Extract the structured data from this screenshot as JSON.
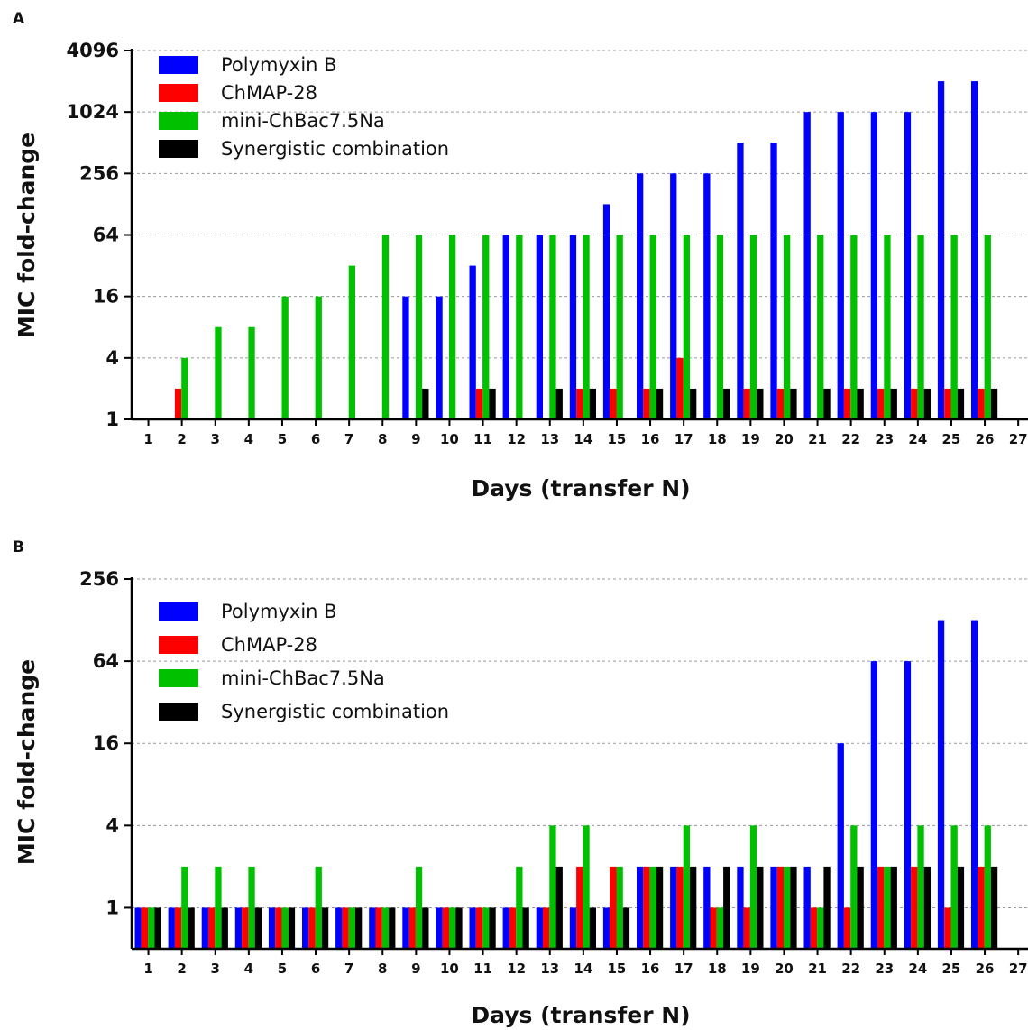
{
  "colors": {
    "Polymyxin B": "#0000ff",
    "ChMAP-28": "#ff0000",
    "mini-ChBac7.5Na": "#00c000",
    "Synergistic combination": "#000000",
    "grid": "#9a9a9a",
    "axis": "#000000"
  },
  "chart_data": [
    {
      "panel": "A",
      "type": "bar",
      "xlabel": "Days (transfer N)",
      "ylabel": "MIC fold-change",
      "yscale": "log2",
      "ylim": [
        1,
        4096
      ],
      "yticks": [
        1,
        4,
        16,
        64,
        256,
        1024,
        4096
      ],
      "grid": true,
      "legend_position": "top-left",
      "categories": [
        "1",
        "2",
        "3",
        "4",
        "5",
        "6",
        "7",
        "8",
        "9",
        "10",
        "11",
        "12",
        "13",
        "14",
        "15",
        "16",
        "17",
        "18",
        "19",
        "20",
        "21",
        "22",
        "23",
        "24",
        "25",
        "26",
        "27"
      ],
      "series": [
        {
          "name": "Polymyxin B",
          "values": [
            1,
            1,
            1,
            1,
            1,
            1,
            1,
            1,
            16,
            16,
            32,
            64,
            64,
            64,
            128,
            256,
            256,
            256,
            512,
            512,
            1024,
            1024,
            1024,
            1024,
            2048,
            2048,
            null
          ]
        },
        {
          "name": "ChMAP-28",
          "values": [
            1,
            2,
            1,
            1,
            1,
            1,
            1,
            1,
            1,
            1,
            2,
            1,
            1,
            2,
            2,
            2,
            4,
            1,
            2,
            2,
            1,
            2,
            2,
            2,
            2,
            2,
            null
          ]
        },
        {
          "name": "mini-ChBac7.5Na",
          "values": [
            1,
            4,
            8,
            8,
            16,
            16,
            32,
            64,
            64,
            64,
            64,
            64,
            64,
            64,
            64,
            64,
            64,
            64,
            64,
            64,
            64,
            64,
            64,
            64,
            64,
            64,
            null
          ]
        },
        {
          "name": "Synergistic combination",
          "values": [
            1,
            1,
            1,
            1,
            1,
            1,
            1,
            1,
            2,
            1,
            2,
            1,
            2,
            2,
            1,
            2,
            2,
            2,
            2,
            2,
            2,
            2,
            2,
            2,
            2,
            2,
            null
          ]
        }
      ]
    },
    {
      "panel": "B",
      "type": "bar",
      "xlabel": "Days (transfer N)",
      "ylabel": "MIC fold-change",
      "yscale": "log2",
      "ylim": [
        0.5,
        256
      ],
      "yticks": [
        1,
        4,
        16,
        64,
        256
      ],
      "grid": true,
      "legend_position": "top-left",
      "categories": [
        "1",
        "2",
        "3",
        "4",
        "5",
        "6",
        "7",
        "8",
        "9",
        "10",
        "11",
        "12",
        "13",
        "14",
        "15",
        "16",
        "17",
        "18",
        "19",
        "20",
        "21",
        "22",
        "23",
        "24",
        "25",
        "26",
        "27"
      ],
      "series": [
        {
          "name": "Polymyxin B",
          "values": [
            1,
            1,
            1,
            1,
            1,
            1,
            1,
            1,
            1,
            1,
            1,
            1,
            1,
            1,
            1,
            2,
            2,
            2,
            2,
            2,
            2,
            16,
            64,
            64,
            128,
            128,
            null
          ]
        },
        {
          "name": "ChMAP-28",
          "values": [
            1,
            1,
            1,
            1,
            1,
            1,
            1,
            1,
            1,
            1,
            1,
            1,
            1,
            2,
            2,
            2,
            2,
            1,
            1,
            2,
            1,
            1,
            2,
            2,
            1,
            2,
            null
          ]
        },
        {
          "name": "mini-ChBac7.5Na",
          "values": [
            1,
            2,
            2,
            2,
            1,
            2,
            1,
            1,
            2,
            1,
            1,
            2,
            4,
            4,
            2,
            2,
            4,
            1,
            4,
            2,
            1,
            4,
            2,
            4,
            4,
            4,
            null
          ]
        },
        {
          "name": "Synergistic combination",
          "values": [
            1,
            1,
            1,
            1,
            1,
            1,
            1,
            1,
            1,
            1,
            1,
            1,
            2,
            1,
            1,
            2,
            2,
            2,
            2,
            2,
            2,
            2,
            2,
            2,
            2,
            2,
            null
          ]
        }
      ]
    }
  ]
}
